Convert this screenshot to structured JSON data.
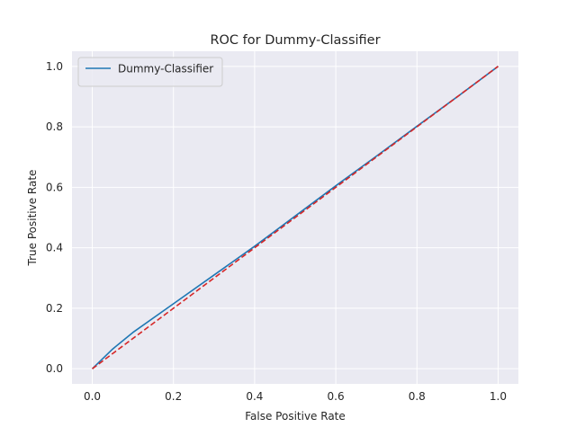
{
  "chart_data": {
    "type": "line",
    "title": "ROC for Dummy-Classifier",
    "xlabel": "False Positive Rate",
    "ylabel": "True Positive Rate",
    "xlim": [
      -0.05,
      1.05
    ],
    "ylim": [
      -0.05,
      1.05
    ],
    "xticks": [
      0.0,
      0.2,
      0.4,
      0.6,
      0.8,
      1.0
    ],
    "yticks": [
      0.0,
      0.2,
      0.4,
      0.6,
      0.8,
      1.0
    ],
    "xtick_labels": [
      "0.0",
      "0.2",
      "0.4",
      "0.6",
      "0.8",
      "1.0"
    ],
    "ytick_labels": [
      "0.0",
      "0.2",
      "0.4",
      "0.6",
      "0.8",
      "1.0"
    ],
    "grid": true,
    "legend": {
      "position": "top-left"
    },
    "series": [
      {
        "name": "Dummy-Classifier",
        "color": "#1f77b4",
        "style": "solid",
        "x": [
          0.0,
          0.05,
          0.1,
          0.2,
          0.3,
          0.4,
          0.5,
          0.6,
          0.7,
          0.8,
          0.9,
          1.0
        ],
        "y": [
          0.0,
          0.065,
          0.12,
          0.215,
          0.31,
          0.405,
          0.505,
          0.605,
          0.703,
          0.802,
          0.9,
          1.0
        ]
      },
      {
        "color": "#d62728",
        "style": "dashed",
        "x": [
          0.0,
          1.0
        ],
        "y": [
          0.0,
          1.0
        ]
      }
    ]
  }
}
